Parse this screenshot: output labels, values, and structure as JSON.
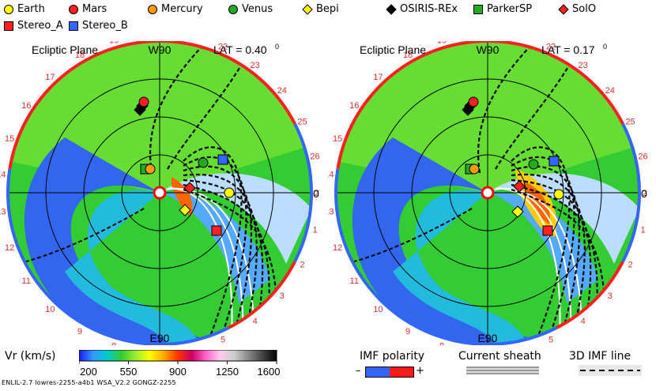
{
  "legend": {
    "items": [
      {
        "label": "Earth",
        "color": "#ffff00",
        "shape": "circle"
      },
      {
        "label": "Mars",
        "color": "#ff2020",
        "shape": "circle"
      },
      {
        "label": "Mercury",
        "color": "#ff9900",
        "shape": "circle"
      },
      {
        "label": "Venus",
        "color": "#22aa22",
        "shape": "circle"
      },
      {
        "label": "Bepi",
        "color": "#ffff00",
        "shape": "diamond"
      },
      {
        "label": "OSIRIS-REx",
        "color": "#000000",
        "shape": "diamond"
      },
      {
        "label": "ParkerSP",
        "color": "#22aa22",
        "shape": "square"
      },
      {
        "label": "SolO",
        "color": "#ff2020",
        "shape": "diamond"
      },
      {
        "label": "Stereo_A",
        "color": "#ff2020",
        "shape": "square"
      },
      {
        "label": "Stereo_B",
        "color": "#3366ff",
        "shape": "square"
      }
    ]
  },
  "panels": [
    {
      "title": "Ecliptic Plane",
      "top_label": "W90",
      "bottom_label": "E90",
      "lat_label": "LAT = 0.40",
      "lat_sup": "0",
      "zero_label": "0",
      "zero_sup": "0",
      "carrington": [
        "1",
        "2",
        "3",
        "4",
        "5",
        "6",
        "7",
        "8",
        "9",
        "10",
        "11",
        "12",
        "13",
        "14",
        "15",
        "16",
        "17",
        "18",
        "19",
        "20",
        "21",
        "22",
        "23",
        "24",
        "25",
        "26",
        "27"
      ]
    },
    {
      "title": "Ecliptic Plane",
      "top_label": "W90",
      "bottom_label": "E90",
      "lat_label": "LAT = 0.17",
      "lat_sup": "0",
      "zero_label": "0",
      "zero_sup": "0",
      "carrington": [
        "1",
        "2",
        "3",
        "4",
        "5",
        "6",
        "7",
        "8",
        "9",
        "10",
        "11",
        "12",
        "13",
        "14",
        "15",
        "16",
        "17",
        "18",
        "19",
        "20",
        "21",
        "22",
        "23",
        "24",
        "25",
        "26",
        "27"
      ]
    }
  ],
  "colorbar": {
    "label": "Vr (km/s)",
    "ticks": [
      "200",
      "550",
      "900",
      "1250",
      "1600"
    ],
    "colors": [
      "#1a1aff",
      "#3399ff",
      "#00cccc",
      "#33cc33",
      "#99ee33",
      "#ffff00",
      "#ffaa00",
      "#ff3300",
      "#cc0066",
      "#ff66cc",
      "#ffccee",
      "#cccccc",
      "#888888",
      "#444444",
      "#000000"
    ]
  },
  "imf_polarity": {
    "label": "IMF polarity",
    "minus": "–",
    "plus": "+",
    "neg_color": "#3366ff",
    "pos_color": "#ff1a1a"
  },
  "current_sheath": {
    "label": "Current sheath"
  },
  "imf_line": {
    "label": "3D IMF line"
  },
  "credit": "ENLIL-2.7 lowres-2255-a4b1 WSA_V2.2 GONGZ-2255"
}
